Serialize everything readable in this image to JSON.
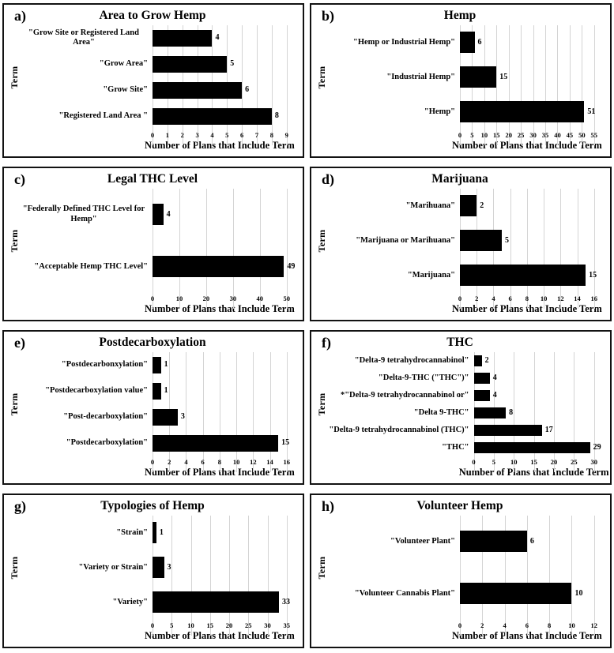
{
  "figure": {
    "xlabel": "Number of Plans that Include Term",
    "ylabel": "Term",
    "colors": {
      "bar": "#000000",
      "gridline": "#d4d4d4",
      "border": "#121212",
      "background": "#ffffff"
    }
  },
  "chart_data": [
    {
      "panel_label": "a)",
      "type": "bar",
      "orientation": "horizontal",
      "title": "Area to Grow Hemp",
      "categories": [
        "\"Grow Site or Registered Land Area\"",
        "\"Grow Area\"",
        "\"Grow Site\"",
        "\"Registered Land Area \""
      ],
      "values": [
        4,
        5,
        6,
        8
      ],
      "xlabel": "Number of Plans that Include Term",
      "ylabel": "Term",
      "xlim": [
        0,
        9
      ],
      "xstep": 1,
      "grid": true
    },
    {
      "panel_label": "b)",
      "type": "bar",
      "orientation": "horizontal",
      "title": "Hemp",
      "categories": [
        "\"Hemp or Industrial Hemp\"",
        "\"Industrial Hemp\"",
        "\"Hemp\""
      ],
      "values": [
        6,
        15,
        51
      ],
      "xlabel": "Number of Plans that Include Term",
      "ylabel": "Term",
      "xlim": [
        0,
        55
      ],
      "xstep": 5,
      "grid": true
    },
    {
      "panel_label": "c)",
      "type": "bar",
      "orientation": "horizontal",
      "title": "Legal THC Level",
      "categories": [
        "\"Federally Defined THC Level for Hemp\"",
        "\"Acceptable Hemp THC Level\""
      ],
      "values": [
        4,
        49
      ],
      "xlabel": "Number of Plans that Include Term",
      "ylabel": "Term",
      "xlim": [
        0,
        50
      ],
      "xstep": 10,
      "grid": true
    },
    {
      "panel_label": "d)",
      "type": "bar",
      "orientation": "horizontal",
      "title": "Marijuana",
      "categories": [
        "\"Marihuana\"",
        "\"Marijuana or Marihuana\"",
        "\"Marijuana\""
      ],
      "values": [
        2,
        5,
        15
      ],
      "xlabel": "Number of Plans that Include Term",
      "ylabel": "Term",
      "xlim": [
        0,
        16
      ],
      "xstep": 2,
      "grid": true
    },
    {
      "panel_label": "e)",
      "type": "bar",
      "orientation": "horizontal",
      "title": "Postdecarboxylation",
      "categories": [
        "\"Postdecarbonxylation\"",
        "\"Postdecarboxylation value\"",
        "\"Post-decarboxylation\"",
        "\"Postdecarboxylation\""
      ],
      "values": [
        1,
        1,
        3,
        15
      ],
      "xlabel": "Number of Plans that Include Term",
      "ylabel": "Term",
      "xlim": [
        0,
        16
      ],
      "xstep": 2,
      "grid": true
    },
    {
      "panel_label": "f)",
      "type": "bar",
      "orientation": "horizontal",
      "title": "THC",
      "categories": [
        "\"Delta-9 tetrahydrocannabinol\"",
        "\"Delta-9-THC (\"THC\")\"",
        "*\"Delta-9 tetrahydrocannabinol or\"",
        "\"Delta 9-THC\"",
        "\"Delta-9 tetrahydrocannabinol (THC)\"",
        "\"THC\""
      ],
      "values": [
        2,
        4,
        4,
        8,
        17,
        29
      ],
      "xlabel": "Number of Plans that Include Term",
      "ylabel": "Term",
      "xlim": [
        0,
        30
      ],
      "xstep": 5,
      "grid": true
    },
    {
      "panel_label": "g)",
      "type": "bar",
      "orientation": "horizontal",
      "title": "Typologies of Hemp",
      "categories": [
        "\"Strain\"",
        "\"Variety or Strain\"",
        "\"Variety\""
      ],
      "values": [
        1,
        3,
        33
      ],
      "xlabel": "Number of Plans that Include Term",
      "ylabel": "Term",
      "xlim": [
        0,
        35
      ],
      "xstep": 5,
      "grid": true
    },
    {
      "panel_label": "h)",
      "type": "bar",
      "orientation": "horizontal",
      "title": "Volunteer Hemp",
      "categories": [
        "\"Volunteer Plant\"",
        "\"Volunteer Cannabis Plant\""
      ],
      "values": [
        6,
        10
      ],
      "xlabel": "Number of Plans that Include Term",
      "ylabel": "Term",
      "xlim": [
        0,
        12
      ],
      "xstep": 2,
      "grid": true
    }
  ]
}
